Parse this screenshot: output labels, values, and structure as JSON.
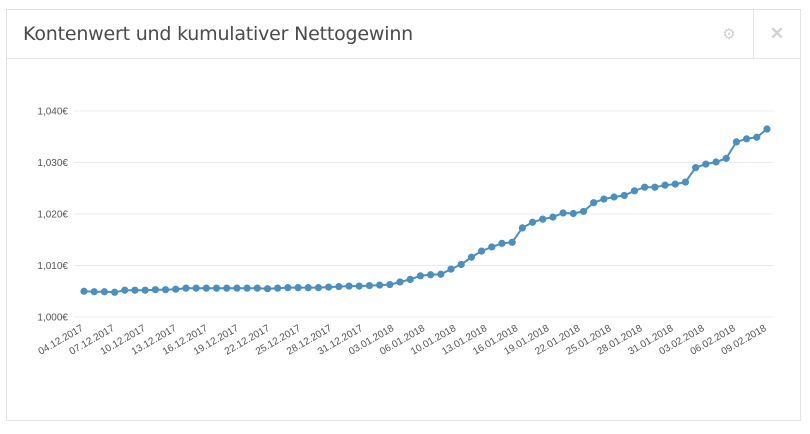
{
  "panel": {
    "title": "Kontenwert und kumulativer Nettogewinn",
    "icons": {
      "settings": "gear-icon",
      "close": "close-icon"
    }
  },
  "colors": {
    "line": "#4b8fc0",
    "grid": "#ececec",
    "text": "#555555"
  },
  "chart_data": {
    "type": "line",
    "title": "Kontenwert und kumulativer Nettogewinn",
    "xlabel": "",
    "ylabel": "",
    "ylim": [
      1000,
      1040
    ],
    "yticks": [
      "1,000€",
      "1,010€",
      "1,020€",
      "1,030€",
      "1,040€"
    ],
    "ytick_values": [
      1000,
      1010,
      1020,
      1030,
      1040
    ],
    "grid": true,
    "x_start": "04.12.2017",
    "x_end": "09.02.2018",
    "xtick_labels": [
      "04.12.2017",
      "07.12.2017",
      "10.12.2017",
      "13.12.2017",
      "16.12.2017",
      "19.12.2017",
      "22.12.2017",
      "25.12.2017",
      "28.12.2017",
      "31.12.2017",
      "03.01.2018",
      "06.01.2018",
      "10.01.2018",
      "13.01.2018",
      "16.01.2018",
      "19.01.2018",
      "22.01.2018",
      "25.01.2018",
      "28.01.2018",
      "31.01.2018",
      "03.02.2018",
      "06.02.2018",
      "09.02.2018"
    ],
    "series": [
      {
        "values": [
          1005.0,
          1004.9,
          1004.9,
          1004.8,
          1005.2,
          1005.2,
          1005.2,
          1005.3,
          1005.3,
          1005.4,
          1005.6,
          1005.6,
          1005.6,
          1005.6,
          1005.6,
          1005.6,
          1005.6,
          1005.6,
          1005.5,
          1005.6,
          1005.7,
          1005.7,
          1005.7,
          1005.7,
          1005.8,
          1005.9,
          1006.0,
          1006.0,
          1006.1,
          1006.2,
          1006.3,
          1006.8,
          1007.3,
          1008.0,
          1008.2,
          1008.3,
          1009.3,
          1010.2,
          1011.6,
          1012.8,
          1013.6,
          1014.3,
          1014.5,
          1017.3,
          1018.4,
          1019.0,
          1019.4,
          1020.2,
          1020.1,
          1020.5,
          1022.2,
          1022.9,
          1023.3,
          1023.6,
          1024.5,
          1025.2,
          1025.2,
          1025.6,
          1025.8,
          1026.2,
          1029.0,
          1029.7,
          1030.1,
          1030.8,
          1034.0,
          1034.6,
          1034.9,
          1036.5
        ]
      }
    ]
  }
}
